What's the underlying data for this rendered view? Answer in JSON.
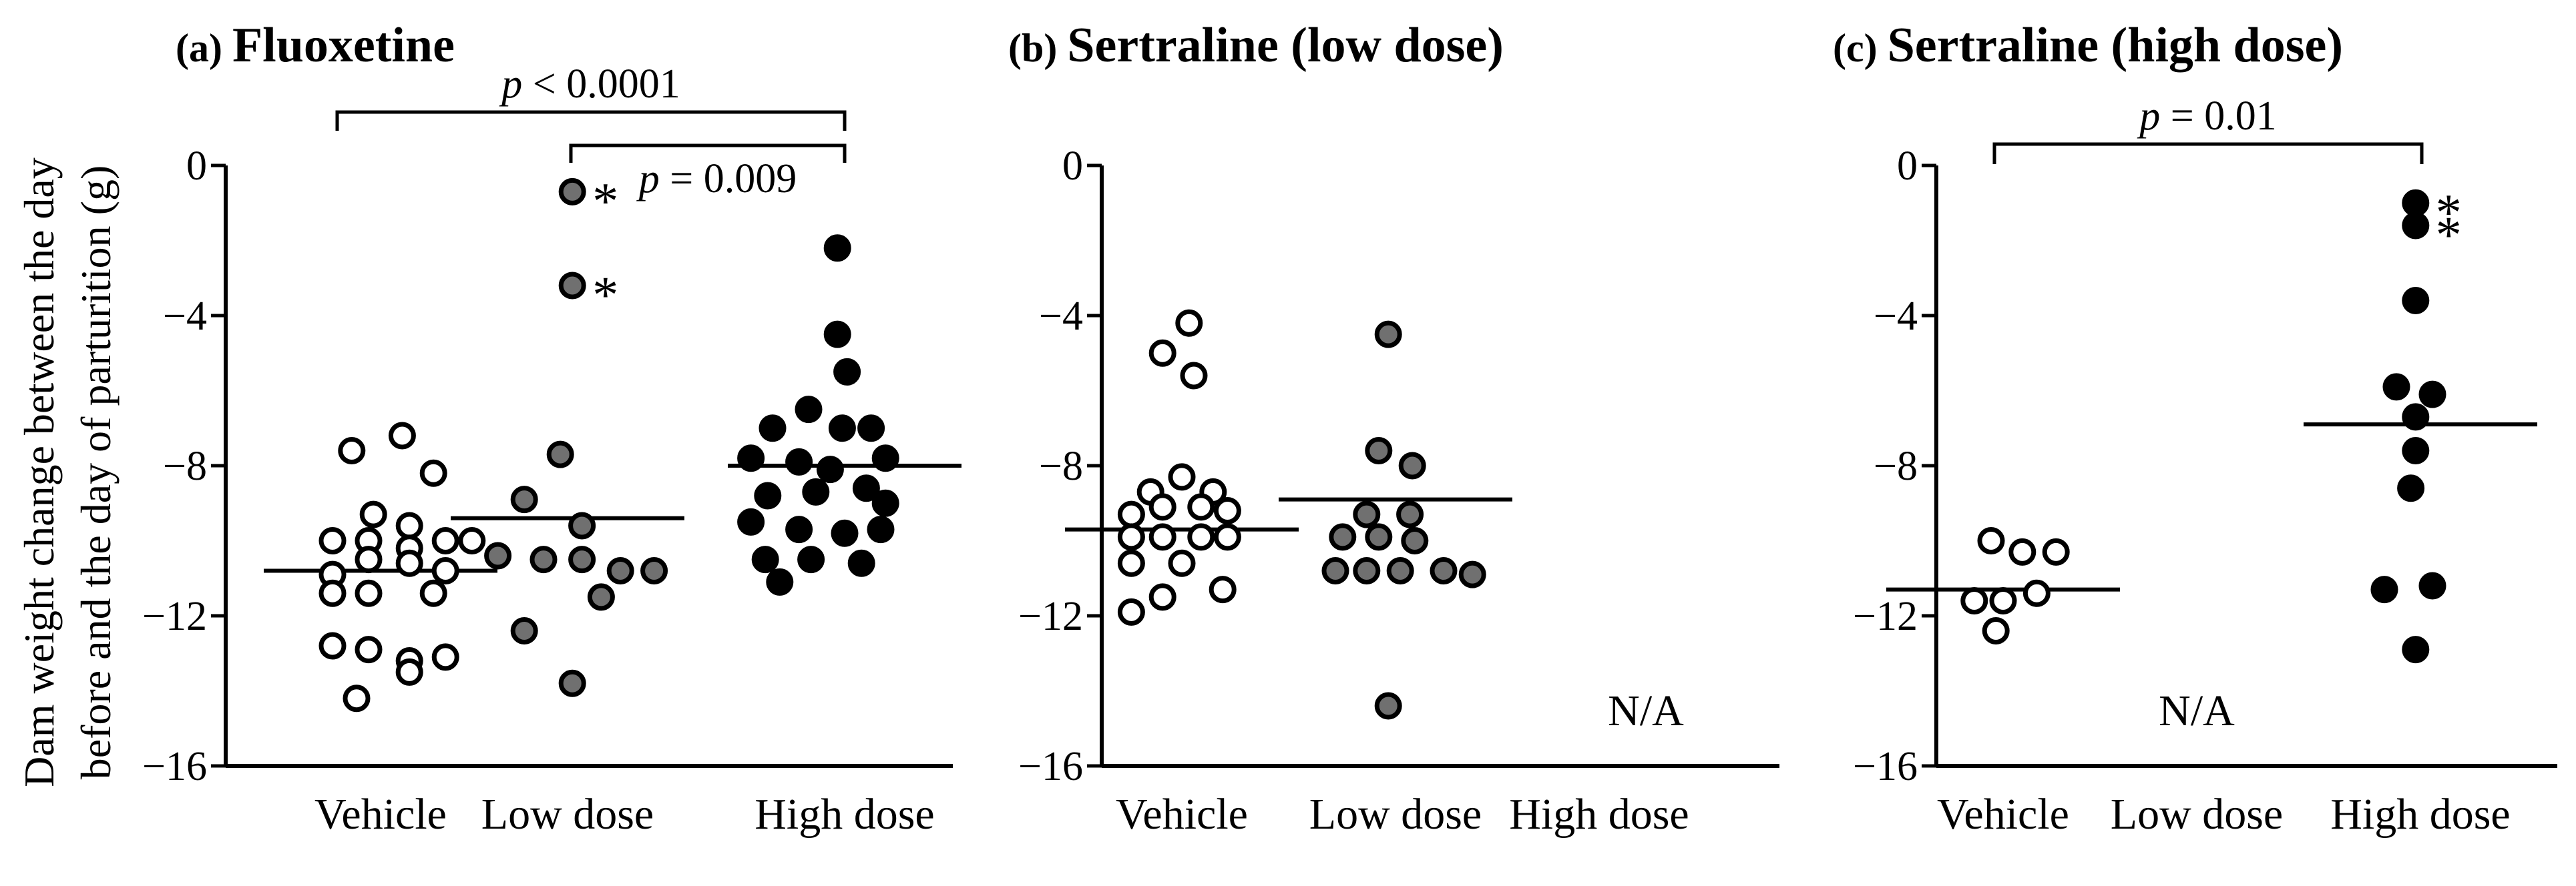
{
  "figure": {
    "ylabel_line1": "Dam weight change between the day",
    "ylabel_line2": "before and the day of parturition (g)"
  },
  "colors": {
    "Vehicle": "#ffffff",
    "Low dose": "#707070",
    "High dose": "#000000",
    "stroke": "#000000"
  },
  "chart_data": [
    {
      "type": "scatter",
      "letter": "(a)",
      "title": "Fluoxetine",
      "ylabel": "Dam weight change between the day before and the day of parturition (g)",
      "ylim": [
        -16,
        0
      ],
      "yticks": [
        0,
        -4,
        -8,
        -12,
        -16
      ],
      "ytick_labels": [
        "0",
        "−4",
        "−8",
        "−12",
        "−16"
      ],
      "categories": [
        "Vehicle",
        "Low dose",
        "High dose"
      ],
      "groups": [
        {
          "name": "Vehicle",
          "fill": "white",
          "mean": -10.8,
          "points": [
            [
              -0.12,
              -7.6
            ],
            [
              0.09,
              -7.2
            ],
            [
              0.22,
              -8.2
            ],
            [
              -0.03,
              -9.3
            ],
            [
              0.12,
              -9.6
            ],
            [
              -0.2,
              -10.0
            ],
            [
              -0.05,
              -10.0
            ],
            [
              0.12,
              -10.2
            ],
            [
              0.27,
              -10.0
            ],
            [
              0.38,
              -10.0
            ],
            [
              -0.2,
              -10.9
            ],
            [
              -0.05,
              -10.5
            ],
            [
              0.12,
              -10.6
            ],
            [
              0.27,
              -10.8
            ],
            [
              -0.2,
              -11.4
            ],
            [
              -0.05,
              -11.4
            ],
            [
              0.22,
              -11.4
            ],
            [
              -0.2,
              -12.8
            ],
            [
              -0.05,
              -12.9
            ],
            [
              0.12,
              -13.2
            ],
            [
              0.27,
              -13.1
            ],
            [
              0.12,
              -13.5
            ],
            [
              -0.1,
              -14.2
            ]
          ]
        },
        {
          "name": "Low dose",
          "fill": "gray",
          "mean": -9.4,
          "points": [
            [
              0.02,
              -0.7
            ],
            [
              0.02,
              -3.2
            ],
            [
              -0.03,
              -7.7
            ],
            [
              -0.18,
              -8.9
            ],
            [
              0.06,
              -9.6
            ],
            [
              -0.29,
              -10.4
            ],
            [
              -0.1,
              -10.5
            ],
            [
              0.06,
              -10.5
            ],
            [
              0.22,
              -10.8
            ],
            [
              0.36,
              -10.8
            ],
            [
              0.14,
              -11.5
            ],
            [
              -0.18,
              -12.4
            ],
            [
              0.02,
              -13.8
            ]
          ]
        },
        {
          "name": "High dose",
          "fill": "black",
          "mean": -8.0,
          "points": [
            [
              -0.03,
              -2.2
            ],
            [
              -0.03,
              -4.5
            ],
            [
              0.01,
              -5.5
            ],
            [
              -0.15,
              -6.5
            ],
            [
              -0.3,
              -7.0
            ],
            [
              -0.01,
              -7.0
            ],
            [
              0.11,
              -7.0
            ],
            [
              -0.39,
              -7.8
            ],
            [
              -0.19,
              -7.9
            ],
            [
              -0.06,
              -8.1
            ],
            [
              0.17,
              -7.8
            ],
            [
              -0.32,
              -8.8
            ],
            [
              -0.12,
              -8.7
            ],
            [
              0.09,
              -8.6
            ],
            [
              0.17,
              -9.0
            ],
            [
              -0.39,
              -9.5
            ],
            [
              -0.19,
              -9.7
            ],
            [
              0.0,
              -9.8
            ],
            [
              0.15,
              -9.7
            ],
            [
              -0.33,
              -10.5
            ],
            [
              -0.14,
              -10.5
            ],
            [
              0.07,
              -10.6
            ],
            [
              -0.27,
              -11.1
            ]
          ]
        }
      ],
      "outlier_marks": [
        {
          "group": "Low dose",
          "y": -0.7,
          "text": "*"
        },
        {
          "group": "Low dose",
          "y": -3.2,
          "text": "*"
        }
      ],
      "brackets": [
        {
          "from": "Vehicle",
          "to": "High dose",
          "label_p": "p",
          "label_rest": " < 0.0001",
          "level": "outer"
        },
        {
          "from": "Low dose",
          "to": "High dose",
          "label_p": "p",
          "label_rest": " = 0.009",
          "level": "inner"
        }
      ],
      "na_label": ""
    },
    {
      "type": "scatter",
      "letter": "(b)",
      "title": "Sertraline (low dose)",
      "ylim": [
        -16,
        0
      ],
      "yticks": [
        0,
        -4,
        -8,
        -12,
        -16
      ],
      "ytick_labels": [
        "0",
        "−4",
        "−8",
        "−12",
        "−16"
      ],
      "categories": [
        "Vehicle",
        "Low dose",
        "High dose"
      ],
      "groups": [
        {
          "name": "Vehicle",
          "fill": "white",
          "mean": -9.7,
          "points": [
            [
              0.03,
              -4.2
            ],
            [
              -0.08,
              -5.0
            ],
            [
              0.05,
              -5.6
            ],
            [
              -0.13,
              -8.7
            ],
            [
              0.0,
              -8.3
            ],
            [
              0.13,
              -8.7
            ],
            [
              -0.21,
              -9.3
            ],
            [
              -0.08,
              -9.1
            ],
            [
              0.08,
              -9.1
            ],
            [
              0.19,
              -9.2
            ],
            [
              -0.21,
              -9.9
            ],
            [
              -0.08,
              -9.9
            ],
            [
              0.08,
              -9.9
            ],
            [
              0.19,
              -9.9
            ],
            [
              -0.21,
              -10.6
            ],
            [
              0.0,
              -10.6
            ],
            [
              -0.08,
              -11.5
            ],
            [
              0.17,
              -11.3
            ],
            [
              -0.21,
              -11.9
            ]
          ]
        },
        {
          "name": "Low dose",
          "fill": "gray",
          "mean": -8.9,
          "points": [
            [
              -0.03,
              -4.5
            ],
            [
              -0.07,
              -7.6
            ],
            [
              0.07,
              -8.0
            ],
            [
              -0.12,
              -9.3
            ],
            [
              0.06,
              -9.3
            ],
            [
              -0.22,
              -9.9
            ],
            [
              -0.07,
              -9.9
            ],
            [
              0.08,
              -10.0
            ],
            [
              -0.25,
              -10.8
            ],
            [
              -0.12,
              -10.8
            ],
            [
              0.02,
              -10.8
            ],
            [
              0.2,
              -10.8
            ],
            [
              0.32,
              -10.9
            ],
            [
              -0.03,
              -14.4
            ]
          ]
        },
        {
          "name": "High dose",
          "fill": "black",
          "mean": null,
          "points": []
        }
      ],
      "outlier_marks": [],
      "brackets": [],
      "na_label": "N/A",
      "na_group": "High dose"
    },
    {
      "type": "scatter",
      "letter": "(c)",
      "title": "Sertraline (high dose)",
      "ylim": [
        -16,
        0
      ],
      "yticks": [
        0,
        -4,
        -8,
        -12,
        -16
      ],
      "ytick_labels": [
        "0",
        "−4",
        "−8",
        "−12",
        "−16"
      ],
      "categories": [
        "Vehicle",
        "Low dose",
        "High dose"
      ],
      "groups": [
        {
          "name": "Vehicle",
          "fill": "white",
          "mean": -11.3,
          "points": [
            [
              -0.05,
              -10.0
            ],
            [
              0.08,
              -10.3
            ],
            [
              0.22,
              -10.3
            ],
            [
              -0.12,
              -11.6
            ],
            [
              0.0,
              -11.6
            ],
            [
              0.14,
              -11.4
            ],
            [
              -0.03,
              -12.4
            ]
          ]
        },
        {
          "name": "Low dose",
          "fill": "gray",
          "mean": null,
          "points": []
        },
        {
          "name": "High dose",
          "fill": "black",
          "mean": -6.9,
          "points": [
            [
              -0.02,
              -1.0
            ],
            [
              -0.02,
              -1.6
            ],
            [
              -0.02,
              -3.6
            ],
            [
              -0.1,
              -5.9
            ],
            [
              0.05,
              -6.1
            ],
            [
              -0.02,
              -6.7
            ],
            [
              -0.02,
              -7.6
            ],
            [
              -0.04,
              -8.6
            ],
            [
              -0.15,
              -11.3
            ],
            [
              0.05,
              -11.2
            ],
            [
              -0.02,
              -12.9
            ]
          ]
        }
      ],
      "outlier_marks": [
        {
          "group": "High dose",
          "y": -1.0,
          "text": "*"
        },
        {
          "group": "High dose",
          "y": -1.6,
          "text": "*"
        }
      ],
      "brackets": [
        {
          "from": "Vehicle",
          "to": "High dose",
          "label_p": "p",
          "label_rest": " = 0.01",
          "level": "outer"
        }
      ],
      "na_label": "N/A",
      "na_group": "Low dose"
    }
  ]
}
